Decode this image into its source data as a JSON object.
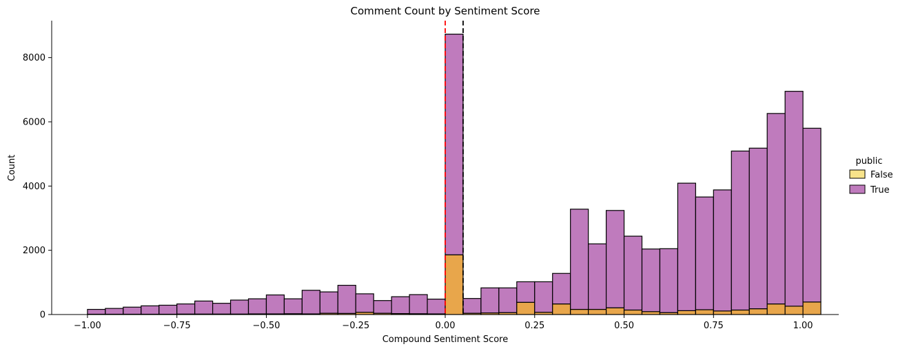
{
  "chart_data": {
    "type": "bar",
    "title": "Comment Count by Sentiment Score",
    "xlabel": "Compound Sentiment Score",
    "ylabel": "Count",
    "xlim": [
      -1.1,
      1.1
    ],
    "ylim": [
      0,
      9150
    ],
    "xticks": [
      -1.0,
      -0.75,
      -0.5,
      -0.25,
      0.0,
      0.25,
      0.5,
      0.75,
      1.0
    ],
    "xtick_labels": [
      "−1.00",
      "−0.75",
      "−0.50",
      "−0.25",
      "0.00",
      "0.25",
      "0.50",
      "0.75",
      "1.00"
    ],
    "yticks": [
      0,
      2000,
      4000,
      6000,
      8000
    ],
    "ytick_labels": [
      "0",
      "2000",
      "4000",
      "6000",
      "8000"
    ],
    "stacked": true,
    "bin_start": -1.0,
    "bin_width": 0.05,
    "reference_lines": [
      {
        "x": 0.0,
        "color": "#ff0000",
        "style": "dashed"
      },
      {
        "x": 0.05,
        "color": "#000000",
        "style": "dashed"
      }
    ],
    "legend": {
      "title": "public",
      "placement": "right"
    },
    "series": [
      {
        "name": "False",
        "color": "#e8a64b",
        "legend_color": "#f7e38a",
        "values": [
          10,
          10,
          10,
          10,
          10,
          15,
          15,
          15,
          15,
          20,
          20,
          25,
          20,
          40,
          35,
          70,
          40,
          30,
          25,
          20,
          1860,
          40,
          50,
          60,
          380,
          70,
          330,
          160,
          160,
          210,
          140,
          90,
          60,
          120,
          150,
          110,
          140,
          180,
          330,
          260,
          390
        ]
      },
      {
        "name": "True",
        "color": "#bf7bbd",
        "legend_color": "#bf7bbd",
        "values": [
          150,
          180,
          220,
          260,
          280,
          315,
          405,
          335,
          435,
          470,
          590,
          465,
          735,
          665,
          875,
          575,
          395,
          525,
          595,
          460,
          6870,
          460,
          780,
          770,
          640,
          950,
          950,
          3120,
          2040,
          3030,
          2300,
          1950,
          1990,
          3970,
          3510,
          3770,
          4950,
          5000,
          5930,
          6690,
          5410
        ]
      }
    ]
  }
}
